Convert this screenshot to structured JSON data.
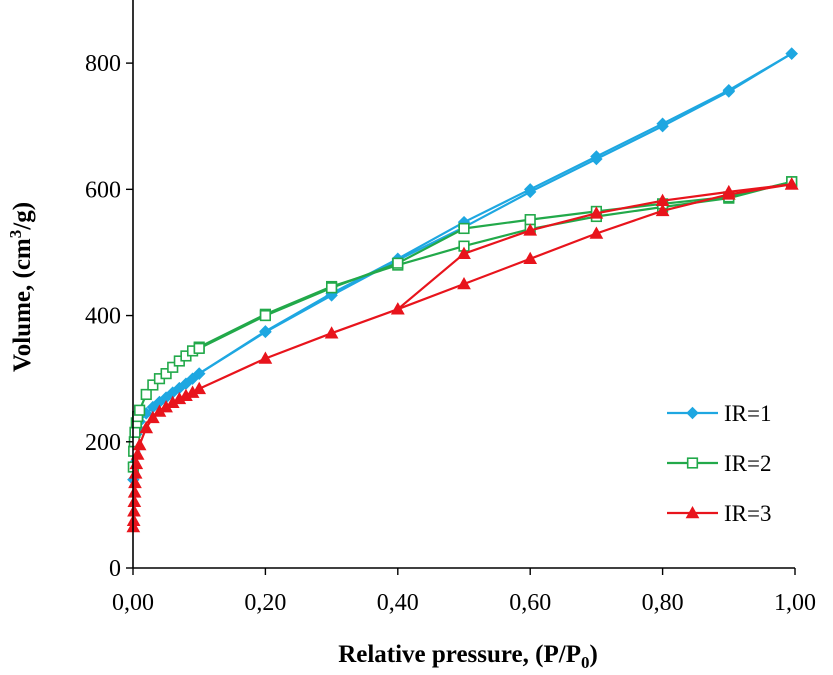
{
  "chart_data": {
    "type": "line",
    "xlabel": "Relative pressure, (P/P",
    "xlabel_sub": "0",
    "xlabel_tail": ")",
    "ylabel": "Volume, (cm",
    "ylabel_sup": "3",
    "ylabel_tail": "/g)",
    "xlim": [
      0,
      1
    ],
    "ylim": [
      0,
      900
    ],
    "xticks": [
      0,
      0.2,
      0.4,
      0.6,
      0.8,
      1.0
    ],
    "xtick_labels": [
      "0,00",
      "0,20",
      "0,40",
      "0,60",
      "0,80",
      "1,00"
    ],
    "yticks": [
      0,
      200,
      400,
      600,
      800
    ],
    "ytick_labels": [
      "0",
      "200",
      "400",
      "600",
      "800"
    ],
    "grid": false,
    "legend_position": "right",
    "series": [
      {
        "name": "IR=1",
        "color": "#1ea7e1",
        "marker": "diamond",
        "adsorption": {
          "x": [
            0.0005,
            0.001,
            0.002,
            0.003,
            0.005,
            0.007,
            0.01,
            0.02,
            0.03,
            0.04,
            0.05,
            0.06,
            0.07,
            0.08,
            0.09,
            0.1,
            0.2,
            0.3,
            0.4,
            0.5,
            0.6,
            0.7,
            0.8,
            0.9,
            0.995
          ],
          "y": [
            140,
            165,
            185,
            200,
            212,
            222,
            232,
            245,
            255,
            263,
            270,
            278,
            285,
            292,
            300,
            308,
            375,
            435,
            490,
            548,
            600,
            652,
            704,
            757,
            815
          ]
        },
        "desorption": {
          "x": [
            0.995,
            0.9,
            0.8,
            0.7,
            0.6,
            0.5,
            0.4,
            0.3,
            0.2,
            0.1
          ],
          "y": [
            815,
            755,
            700,
            648,
            596,
            540,
            488,
            432,
            374,
            308
          ]
        }
      },
      {
        "name": "IR=2",
        "color": "#22a94a",
        "marker": "square-open",
        "adsorption": {
          "x": [
            0.0005,
            0.001,
            0.002,
            0.003,
            0.005,
            0.007,
            0.01,
            0.02,
            0.03,
            0.04,
            0.05,
            0.06,
            0.07,
            0.08,
            0.09,
            0.1,
            0.2,
            0.3,
            0.4,
            0.5,
            0.6,
            0.7,
            0.8,
            0.9,
            0.995
          ],
          "y": [
            160,
            185,
            200,
            215,
            230,
            240,
            250,
            275,
            290,
            300,
            308,
            318,
            328,
            336,
            344,
            350,
            402,
            446,
            480,
            510,
            537,
            557,
            572,
            586,
            612
          ]
        },
        "desorption": {
          "x": [
            0.995,
            0.9,
            0.8,
            0.7,
            0.6,
            0.5,
            0.4,
            0.3,
            0.2,
            0.1
          ],
          "y": [
            612,
            588,
            577,
            565,
            552,
            538,
            483,
            444,
            400,
            348
          ]
        }
      },
      {
        "name": "IR=3",
        "color": "#e8141c",
        "marker": "triangle",
        "adsorption": {
          "x": [
            0.0005,
            0.001,
            0.0015,
            0.002,
            0.0025,
            0.003,
            0.004,
            0.005,
            0.007,
            0.01,
            0.02,
            0.03,
            0.04,
            0.05,
            0.06,
            0.07,
            0.08,
            0.09,
            0.1,
            0.2,
            0.3,
            0.4,
            0.5,
            0.6,
            0.7,
            0.8,
            0.9,
            0.995
          ],
          "y": [
            65,
            75,
            90,
            105,
            120,
            135,
            150,
            165,
            180,
            195,
            222,
            238,
            248,
            255,
            262,
            268,
            273,
            278,
            284,
            332,
            372,
            410,
            450,
            490,
            530,
            566,
            592,
            608
          ]
        },
        "desorption": {
          "x": [
            0.995,
            0.9,
            0.8,
            0.7,
            0.6,
            0.5,
            0.4
          ],
          "y": [
            608,
            596,
            582,
            562,
            535,
            498,
            410
          ]
        }
      }
    ]
  }
}
